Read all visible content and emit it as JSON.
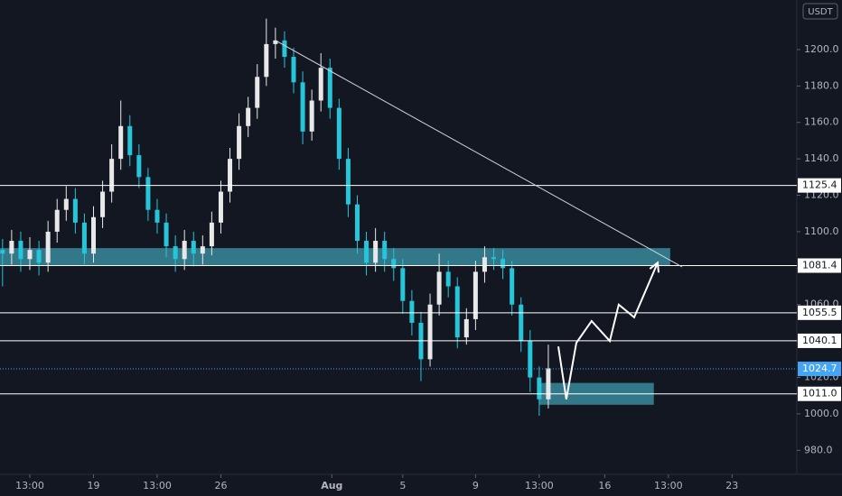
{
  "chart_data": {
    "type": "candlestick",
    "currency": "USDT",
    "x": [
      -1.5,
      -1,
      -0.5,
      0,
      0.5,
      1,
      1.5,
      2,
      2.5,
      3,
      3.5,
      4,
      4.5,
      5,
      5.5,
      6,
      6.5,
      7,
      7.5,
      8,
      8.5,
      9,
      9.5,
      10,
      10.5,
      11,
      11.5,
      12,
      12.5,
      13,
      13.5,
      14,
      14.5,
      15,
      15.5,
      16,
      16.5,
      17,
      17.5,
      18,
      18.5,
      19,
      19.5,
      20,
      20.5,
      21,
      21.5,
      22,
      22.5,
      23,
      23.5,
      24,
      24.5,
      25,
      25.5,
      26,
      26.5,
      27,
      27.5,
      28,
      28.5
    ],
    "open": [
      1090,
      1088,
      1095,
      1085,
      1090,
      1083,
      1100,
      1112,
      1118,
      1105,
      1088,
      1108,
      1122,
      1140,
      1158,
      1142,
      1130,
      1112,
      1105,
      1092,
      1085,
      1095,
      1088,
      1092,
      1105,
      1122,
      1140,
      1158,
      1168,
      1185,
      1203,
      1205,
      1196,
      1182,
      1155,
      1172,
      1190,
      1168,
      1140,
      1115,
      1095,
      1083,
      1095,
      1085,
      1080,
      1062,
      1050,
      1030,
      1060,
      1078,
      1070,
      1042,
      1052,
      1078,
      1086,
      1085,
      1080,
      1060,
      1040,
      1020,
      1008
    ],
    "high": [
      1096,
      1101,
      1100,
      1097,
      1095,
      1106,
      1118,
      1125,
      1124,
      1110,
      1114,
      1128,
      1148,
      1172,
      1164,
      1148,
      1135,
      1118,
      1110,
      1098,
      1101,
      1100,
      1098,
      1111,
      1128,
      1146,
      1165,
      1174,
      1192,
      1217,
      1212,
      1210,
      1201,
      1188,
      1178,
      1198,
      1195,
      1173,
      1146,
      1120,
      1100,
      1102,
      1100,
      1091,
      1085,
      1068,
      1056,
      1066,
      1088,
      1084,
      1075,
      1058,
      1084,
      1092,
      1091,
      1090,
      1084,
      1064,
      1046,
      1026,
      1038
    ],
    "low": [
      1070,
      1082,
      1078,
      1079,
      1076,
      1078,
      1094,
      1106,
      1099,
      1082,
      1083,
      1102,
      1116,
      1134,
      1136,
      1124,
      1106,
      1099,
      1086,
      1078,
      1079,
      1081,
      1082,
      1087,
      1099,
      1116,
      1134,
      1152,
      1162,
      1180,
      1195,
      1190,
      1176,
      1148,
      1150,
      1166,
      1162,
      1134,
      1108,
      1088,
      1076,
      1078,
      1078,
      1073,
      1055,
      1043,
      1018,
      1026,
      1054,
      1064,
      1036,
      1038,
      1046,
      1072,
      1079,
      1074,
      1054,
      1034,
      1012,
      999,
      1003
    ],
    "close": [
      1088,
      1095,
      1085,
      1090,
      1083,
      1100,
      1112,
      1118,
      1105,
      1088,
      1108,
      1122,
      1140,
      1158,
      1142,
      1130,
      1112,
      1105,
      1092,
      1085,
      1095,
      1088,
      1092,
      1105,
      1122,
      1140,
      1158,
      1168,
      1185,
      1203,
      1205,
      1196,
      1182,
      1155,
      1172,
      1190,
      1168,
      1140,
      1115,
      1095,
      1083,
      1095,
      1085,
      1080,
      1062,
      1050,
      1030,
      1060,
      1078,
      1070,
      1042,
      1052,
      1078,
      1086,
      1085,
      1080,
      1060,
      1040,
      1020,
      1008,
      1025
    ],
    "up_color": "#e8e8e8",
    "down_color": "#26c6da",
    "xlim": [
      -1.64,
      42.16
    ],
    "ylim": [
      966.8,
      1227.2
    ],
    "xticks": [
      {
        "value": 0,
        "label": "13:00"
      },
      {
        "value": 3.5,
        "label": "19"
      },
      {
        "value": 7,
        "label": "13:00"
      },
      {
        "value": 10.5,
        "label": "26"
      },
      {
        "value": 16.6,
        "label": "Aug"
      },
      {
        "value": 20.5,
        "label": "5"
      },
      {
        "value": 24.5,
        "label": "9"
      },
      {
        "value": 28,
        "label": "13:00"
      },
      {
        "value": 31.6,
        "label": "16"
      },
      {
        "value": 35.1,
        "label": "13:00"
      },
      {
        "value": 38.6,
        "label": "23"
      }
    ],
    "yticks": [
      {
        "value": 980,
        "label": "980.0"
      },
      {
        "value": 1000,
        "label": "1000.0"
      },
      {
        "value": 1020,
        "label": "1020.0"
      },
      {
        "value": 1040,
        "label": "1040.0"
      },
      {
        "value": 1060,
        "label": "1060.0"
      },
      {
        "value": 1080,
        "label": "1080.0"
      },
      {
        "value": 1100,
        "label": "1100.0"
      },
      {
        "value": 1120,
        "label": "1120.0"
      },
      {
        "value": 1140,
        "label": "1140.0"
      },
      {
        "value": 1160,
        "label": "1160.0"
      },
      {
        "value": 1180,
        "label": "1180.0"
      },
      {
        "value": 1200,
        "label": "1200.0"
      }
    ],
    "levels": [
      {
        "value": 1125.4,
        "label": "1125.4"
      },
      {
        "value": 1081.4,
        "label": "1081.4"
      },
      {
        "value": 1055.5,
        "label": "1055.5"
      },
      {
        "value": 1040.1,
        "label": "1040.1"
      },
      {
        "value": 1011,
        "label": "1011.0"
      }
    ],
    "last_price": {
      "value": 1024.7,
      "label": "1024.7",
      "color": "#42a5f5"
    },
    "zones": [
      {
        "x": [
          -1.64,
          35.2
        ],
        "y": [
          1081.4,
          1091
        ],
        "color": "#3a8a9a"
      },
      {
        "x": [
          28.0,
          34.3
        ],
        "y": [
          1005,
          1017
        ],
        "color": "#3a8a9a"
      }
    ],
    "trendline": {
      "x": [
        13.5,
        35.85
      ],
      "y": [
        1205,
        1080.7
      ]
    },
    "projection": {
      "x": [
        29.05,
        29.49,
        30.04,
        30.88,
        31.88,
        32.37,
        33.22,
        34.51
      ],
      "y": [
        1037,
        1008,
        1039,
        1051,
        1040,
        1060,
        1053,
        1083
      ]
    },
    "grid": false
  }
}
